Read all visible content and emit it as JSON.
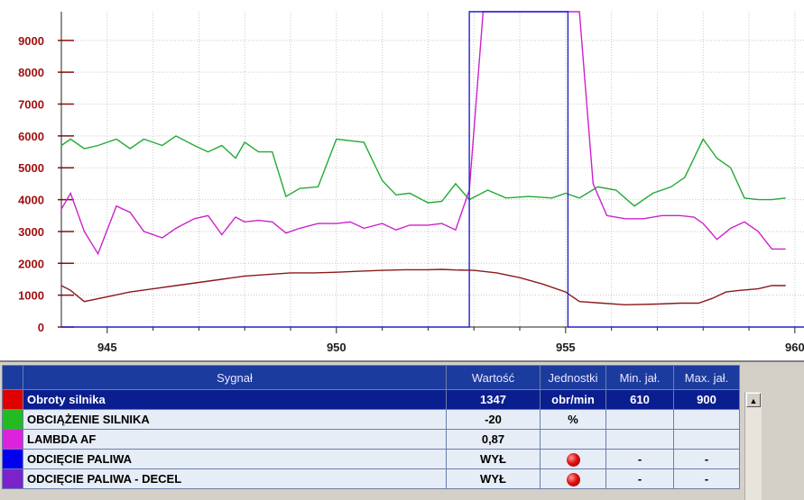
{
  "chart_data": {
    "type": "line",
    "xlim": [
      944,
      960.2
    ],
    "ylim": [
      0,
      9900
    ],
    "y_ticks": [
      "9000",
      "8000",
      "7000",
      "6000",
      "5000",
      "4000",
      "3000",
      "2000",
      "1000",
      "0"
    ],
    "x_ticks": [
      "945",
      "950",
      "955",
      "960"
    ],
    "grid": true,
    "series": [
      {
        "color": "#22aa33",
        "x": [
          944,
          944.2,
          944.5,
          944.8,
          945.2,
          945.5,
          945.8,
          946.2,
          946.5,
          946.9,
          947.2,
          947.5,
          947.8,
          948,
          948.3,
          948.6,
          948.9,
          949.2,
          949.6,
          950,
          950.3,
          950.6,
          951,
          951.3,
          951.6,
          952,
          952.3,
          952.6,
          952.9,
          953.3,
          953.7,
          954.2,
          954.7,
          955,
          955.3,
          955.7,
          956.1,
          956.5,
          956.9,
          957.3,
          957.6,
          958,
          958.3,
          958.6,
          958.9,
          959.2,
          959.5,
          959.8
        ],
        "y": [
          5700,
          5900,
          5600,
          5700,
          5900,
          5600,
          5900,
          5700,
          6000,
          5700,
          5500,
          5700,
          5300,
          5800,
          5500,
          5500,
          4100,
          4350,
          4400,
          5900,
          5850,
          5800,
          4600,
          4150,
          4200,
          3900,
          3950,
          4500,
          4000,
          4300,
          4050,
          4100,
          4050,
          4200,
          4050,
          4400,
          4300,
          3800,
          4200,
          4400,
          4700,
          5900,
          5300,
          5000,
          4050,
          4000,
          4000,
          4050
        ]
      },
      {
        "color": "#cc22cc",
        "x": [
          944,
          944.2,
          944.5,
          944.8,
          945.2,
          945.5,
          945.8,
          946.2,
          946.5,
          946.9,
          947.2,
          947.5,
          947.8,
          948,
          948.3,
          948.6,
          948.9,
          949.2,
          949.6,
          950,
          950.3,
          950.6,
          951,
          951.3,
          951.6,
          952,
          952.3,
          952.6,
          952.9,
          953.2,
          953.5,
          955.3,
          955.6,
          955.9,
          956.3,
          956.7,
          957.1,
          957.5,
          957.8,
          958,
          958.3,
          958.6,
          958.9,
          959.2,
          959.5,
          959.8
        ],
        "y": [
          3700,
          4200,
          3000,
          2300,
          3800,
          3600,
          3000,
          2800,
          3100,
          3400,
          3500,
          2900,
          3450,
          3300,
          3350,
          3300,
          2950,
          3100,
          3250,
          3250,
          3300,
          3100,
          3250,
          3050,
          3200,
          3200,
          3250,
          3050,
          4300,
          9900,
          9900,
          9900,
          4500,
          3500,
          3400,
          3400,
          3500,
          3500,
          3450,
          3250,
          2750,
          3100,
          3300,
          3000,
          2450,
          2450
        ]
      },
      {
        "color": "#8b1a1a",
        "x": [
          944,
          944.2,
          944.5,
          945,
          945.5,
          946,
          946.5,
          947,
          947.5,
          948,
          948.5,
          949,
          949.5,
          950,
          950.5,
          951,
          951.5,
          952,
          952.3,
          952.6,
          953,
          953.5,
          954,
          954.5,
          955,
          955.3,
          955.8,
          956.3,
          957,
          957.5,
          957.9,
          958.2,
          958.5,
          958.8,
          959.2,
          959.5,
          959.8
        ],
        "y": [
          1300,
          1150,
          800,
          950,
          1100,
          1200,
          1300,
          1400,
          1500,
          1600,
          1650,
          1700,
          1700,
          1720,
          1750,
          1780,
          1800,
          1800,
          1810,
          1790,
          1780,
          1700,
          1550,
          1350,
          1100,
          800,
          750,
          700,
          720,
          750,
          750,
          900,
          1100,
          1150,
          1200,
          1300,
          1300
        ]
      },
      {
        "color": "#2222cc",
        "x": [
          944,
          952.9,
          952.9,
          955.05,
          955.05,
          960.2
        ],
        "y": [
          0,
          0,
          9900,
          9900,
          0,
          0
        ]
      }
    ]
  },
  "table": {
    "headers": [
      "Sygnał",
      "Wartość",
      "Jednostki",
      "Min. jał.",
      "Max. jał."
    ],
    "rows": [
      {
        "color": "#e00000",
        "name": "Obroty silnika",
        "value": "1347",
        "unit": "obr/min",
        "min": "610",
        "max": "900"
      },
      {
        "color": "#22bb22",
        "name": "OBCIĄŻENIE SILNIKA",
        "value": "-20",
        "unit": "%",
        "min": "",
        "max": ""
      },
      {
        "color": "#dd22dd",
        "name": "LAMBDA AF",
        "value": "0,87",
        "unit": "",
        "min": "",
        "max": ""
      },
      {
        "color": "#0000ee",
        "name": "ODCIĘCIE PALIWA",
        "value": "WYŁ",
        "unit": "led",
        "min": "-",
        "max": "-"
      },
      {
        "color": "#7a22cc",
        "name": "ODCIĘCIE PALIWA - DECEL",
        "value": "WYŁ",
        "unit": "led",
        "min": "-",
        "max": "-"
      }
    ]
  },
  "scroll_up_icon": "triangle-up-icon"
}
